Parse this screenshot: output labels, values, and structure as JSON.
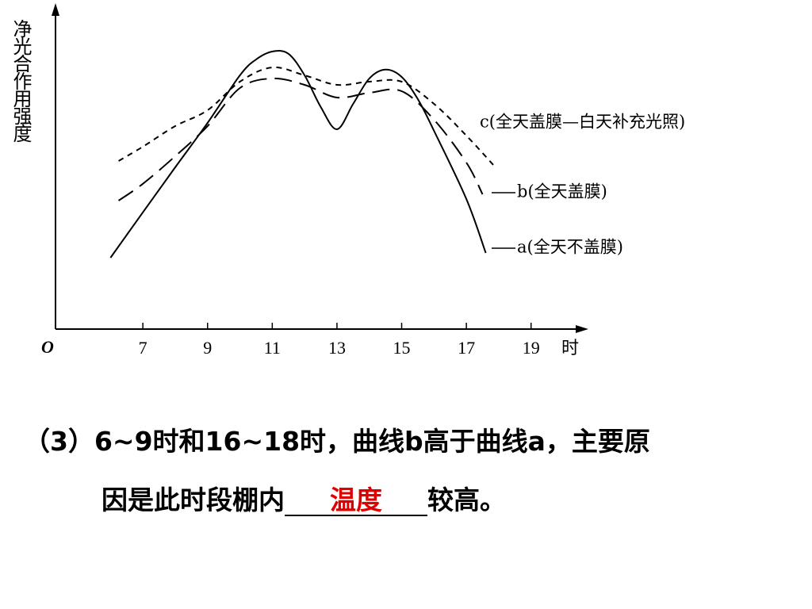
{
  "chart_data": {
    "type": "line",
    "y_label": "净光合作用强度",
    "x_label": "时",
    "origin_label": "O",
    "xlim": [
      4.3,
      20.6
    ],
    "ylim": [
      0,
      100
    ],
    "xticks": [
      7,
      9,
      11,
      13,
      15,
      17,
      19
    ],
    "series": [
      {
        "name": "c(全天盖膜—白天补充光照)",
        "color": "#000000",
        "line_style": "short-dash",
        "x": [
          6.25,
          7,
          8,
          9,
          10,
          11,
          12,
          13,
          14,
          15,
          16,
          17,
          17.9
        ],
        "values": [
          53,
          57.5,
          64,
          69,
          78,
          82.5,
          80,
          77,
          78,
          78,
          71,
          61,
          51
        ]
      },
      {
        "name": "b(全天盖膜)",
        "color": "#000000",
        "line_style": "long-dash",
        "x": [
          6.25,
          7,
          8,
          9,
          10,
          11,
          12,
          13,
          14,
          15,
          16,
          17,
          17.5
        ],
        "values": [
          40.5,
          45.8,
          54.5,
          64,
          76,
          79,
          77,
          73,
          74.5,
          75,
          66,
          52.5,
          42.5
        ]
      },
      {
        "name": "a(全天不盖膜)",
        "color": "#000000",
        "line_style": "solid",
        "x": [
          6,
          7,
          8,
          9,
          10,
          10.5,
          11,
          11.5,
          12,
          12.5,
          13,
          13.5,
          14,
          14.5,
          15,
          15.5,
          16,
          17,
          17.6
        ],
        "values": [
          22.5,
          36.8,
          51,
          65,
          80,
          85,
          87.5,
          86.8,
          80,
          70,
          63,
          71,
          79,
          81.8,
          79.5,
          72.5,
          62.5,
          41,
          24
        ]
      }
    ]
  },
  "question": {
    "line1": "（3）6~9时和16~18时，曲线b高于曲线a，主要原",
    "line2_before": "因是此时段棚内",
    "answer": "温度",
    "line2_after": "较高。"
  }
}
